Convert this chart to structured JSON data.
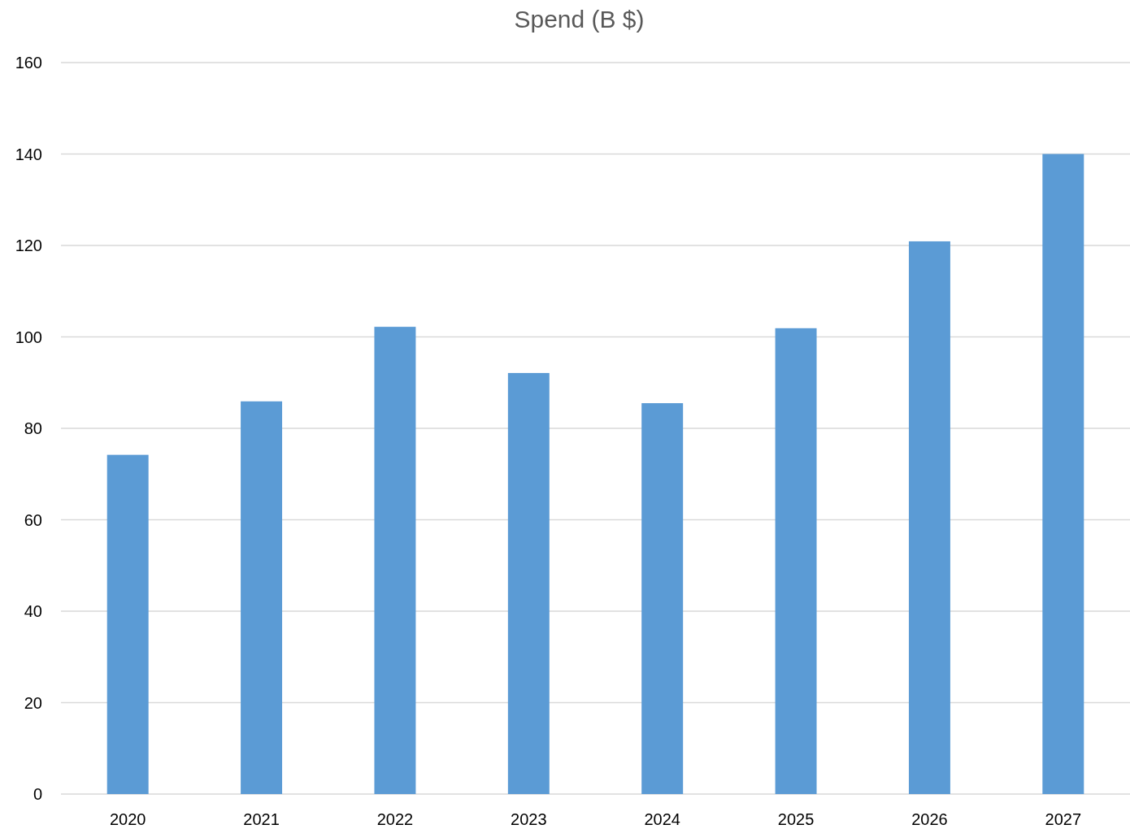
{
  "chart_data": {
    "type": "bar",
    "title": "Spend (B $)",
    "categories": [
      "2020",
      "2021",
      "2022",
      "2023",
      "2024",
      "2025",
      "2026",
      "2027"
    ],
    "values": [
      74.2,
      85.9,
      102.2,
      92.1,
      85.5,
      101.9,
      120.9,
      140
    ],
    "color": "#5b9bd5",
    "ylim": [
      0,
      160
    ],
    "yticks": [
      0,
      20,
      40,
      60,
      80,
      100,
      120,
      140,
      160
    ],
    "grid": "y"
  }
}
